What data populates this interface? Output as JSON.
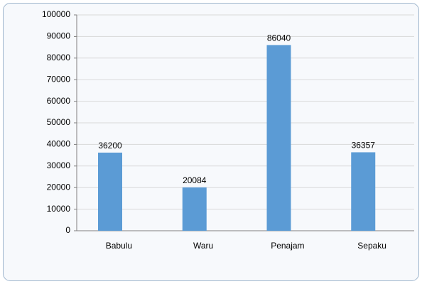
{
  "chart_data": {
    "type": "bar",
    "categories": [
      "Babulu",
      "Waru",
      "Penajam",
      "Sepaku"
    ],
    "values": [
      36200,
      20084,
      86040,
      36357
    ],
    "color": "#5b9bd5",
    "ylim": [
      0,
      100000
    ],
    "yticks": [
      0,
      10000,
      20000,
      30000,
      40000,
      50000,
      60000,
      70000,
      80000,
      90000,
      100000
    ],
    "grid": true
  }
}
